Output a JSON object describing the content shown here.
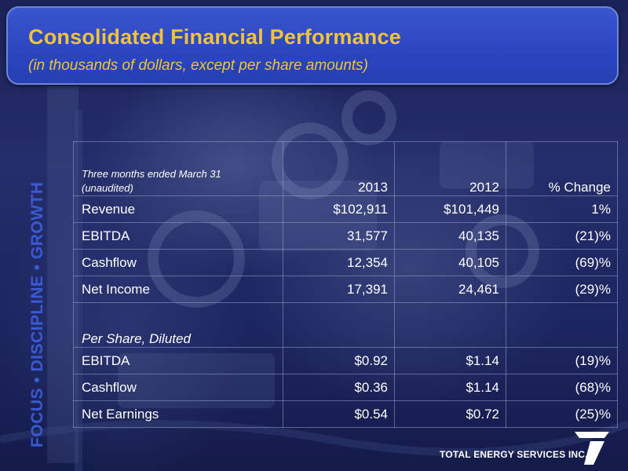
{
  "header": {
    "title": "Consolidated Financial Performance",
    "subtitle": "(in thousands of dollars, except per share amounts)"
  },
  "tagline": "FOCUS • DISCIPLINE • GROWTH",
  "table": {
    "period_label_line1": "Three months ended March 31",
    "period_label_line2": "(unaudited)",
    "columns": [
      "2013",
      "2012",
      "% Change"
    ],
    "rows": [
      {
        "label": "Revenue",
        "y2013": "$102,911",
        "y2012": "$101,449",
        "change": "1%"
      },
      {
        "label": "EBITDA",
        "y2013": "31,577",
        "y2012": "40,135",
        "change": "(21)%"
      },
      {
        "label": "Cashflow",
        "y2013": "12,354",
        "y2012": "40,105",
        "change": "(69)%"
      },
      {
        "label": "Net Income",
        "y2013": "17,391",
        "y2012": "24,461",
        "change": "(29)%"
      }
    ],
    "per_share_label": "Per Share, Diluted",
    "per_share_rows": [
      {
        "label": "EBITDA",
        "y2013": "$0.92",
        "y2012": "$1.14",
        "change": "(19)%"
      },
      {
        "label": "Cashflow",
        "y2013": "$0.36",
        "y2012": "$1.14",
        "change": "(68)%"
      },
      {
        "label": "Net Earnings",
        "y2013": "$0.54",
        "y2012": "$0.72",
        "change": "(25)%"
      }
    ]
  },
  "logo": {
    "company_name": "TOTAL ENERGY SERVICES INC."
  },
  "colors": {
    "title": "#f0c43a",
    "header_box": "#2a45bf",
    "tagline": "#3a5ad4",
    "background": "#1d2560"
  }
}
